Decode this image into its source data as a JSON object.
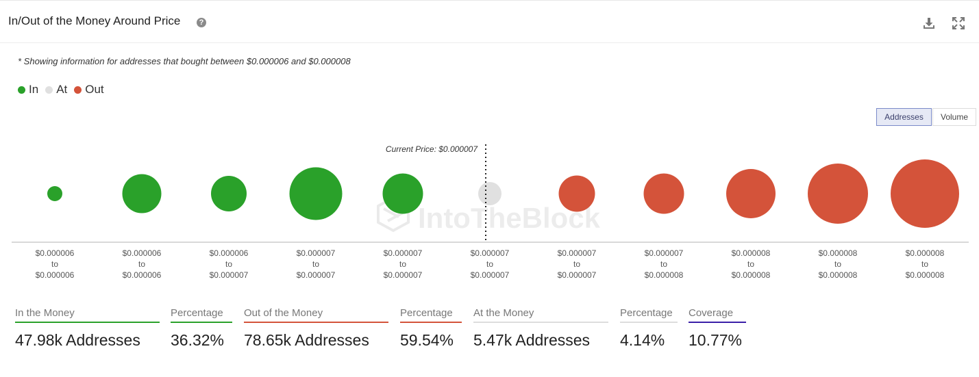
{
  "header": {
    "title": "In/Out of the Money Around Price",
    "help_icon": "question-circle-icon",
    "download_icon": "download-icon",
    "expand_icon": "expand-icon"
  },
  "note": "* Showing information for addresses that bought between $0.000006 and $0.000008",
  "legend": [
    {
      "label": "In",
      "color": "#2aa12a"
    },
    {
      "label": "At",
      "color": "#e0e0e0"
    },
    {
      "label": "Out",
      "color": "#d4533a"
    }
  ],
  "toggle": {
    "addresses_label": "Addresses",
    "volume_label": "Volume",
    "active": "Addresses"
  },
  "watermark": "IntoTheBlock",
  "chart_data": {
    "type": "bubble",
    "current_price_label": "Current Price: $0.000007",
    "current_price_index": 5,
    "colors": {
      "in": "#2aa12a",
      "at": "#e0e0e0",
      "out": "#d4533a"
    },
    "buckets": [
      {
        "from": "$0.000006",
        "to_word": "to",
        "to": "$0.000006",
        "status": "in",
        "relative_size": 0.22
      },
      {
        "from": "$0.000006",
        "to_word": "to",
        "to": "$0.000006",
        "status": "in",
        "relative_size": 0.57
      },
      {
        "from": "$0.000006",
        "to_word": "to",
        "to": "$0.000007",
        "status": "in",
        "relative_size": 0.52
      },
      {
        "from": "$0.000007",
        "to_word": "to",
        "to": "$0.000007",
        "status": "in",
        "relative_size": 0.77
      },
      {
        "from": "$0.000007",
        "to_word": "to",
        "to": "$0.000007",
        "status": "in",
        "relative_size": 0.59
      },
      {
        "from": "$0.000007",
        "to_word": "to",
        "to": "$0.000007",
        "status": "at",
        "relative_size": 0.34
      },
      {
        "from": "$0.000007",
        "to_word": "to",
        "to": "$0.000007",
        "status": "out",
        "relative_size": 0.53
      },
      {
        "from": "$0.000007",
        "to_word": "to",
        "to": "$0.000008",
        "status": "out",
        "relative_size": 0.59
      },
      {
        "from": "$0.000008",
        "to_word": "to",
        "to": "$0.000008",
        "status": "out",
        "relative_size": 0.72
      },
      {
        "from": "$0.000008",
        "to_word": "to",
        "to": "$0.000008",
        "status": "out",
        "relative_size": 0.88
      },
      {
        "from": "$0.000008",
        "to_word": "to",
        "to": "$0.000008",
        "status": "out",
        "relative_size": 1.0
      }
    ]
  },
  "stats": [
    {
      "label": "In the Money",
      "value": "47.98k Addresses",
      "color": "#2aa12a"
    },
    {
      "label": "Percentage",
      "value": "36.32%",
      "color": "#2aa12a"
    },
    {
      "label": "Out of the Money",
      "value": "78.65k Addresses",
      "color": "#d4533a"
    },
    {
      "label": "Percentage",
      "value": "59.54%",
      "color": "#d4533a"
    },
    {
      "label": "At the Money",
      "value": "5.47k Addresses",
      "color": "#dddddd"
    },
    {
      "label": "Percentage",
      "value": "4.14%",
      "color": "#dddddd"
    },
    {
      "label": "Coverage",
      "value": "10.77%",
      "color": "#3a1fa8"
    }
  ]
}
